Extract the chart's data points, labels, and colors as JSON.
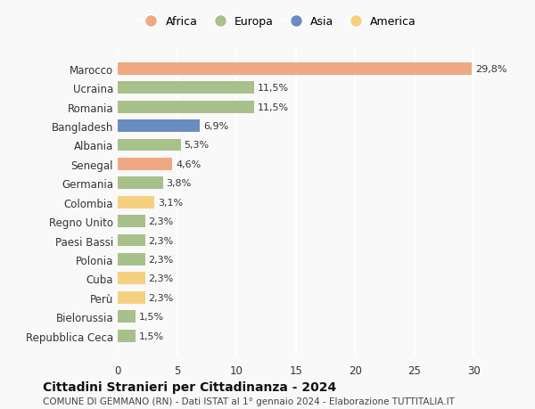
{
  "countries": [
    "Repubblica Ceca",
    "Bielorussia",
    "Perù",
    "Cuba",
    "Polonia",
    "Paesi Bassi",
    "Regno Unito",
    "Colombia",
    "Germania",
    "Senegal",
    "Albania",
    "Bangladesh",
    "Romania",
    "Ucraina",
    "Marocco"
  ],
  "values": [
    1.5,
    1.5,
    2.3,
    2.3,
    2.3,
    2.3,
    2.3,
    3.1,
    3.8,
    4.6,
    5.3,
    6.9,
    11.5,
    11.5,
    29.8
  ],
  "labels": [
    "1,5%",
    "1,5%",
    "2,3%",
    "2,3%",
    "2,3%",
    "2,3%",
    "2,3%",
    "3,1%",
    "3,8%",
    "4,6%",
    "5,3%",
    "6,9%",
    "11,5%",
    "11,5%",
    "29,8%"
  ],
  "continents": [
    "Europa",
    "Europa",
    "America",
    "America",
    "Europa",
    "Europa",
    "Europa",
    "America",
    "Europa",
    "Africa",
    "Europa",
    "Asia",
    "Europa",
    "Europa",
    "Africa"
  ],
  "colors": {
    "Africa": "#F0A882",
    "Europa": "#A8C08A",
    "Asia": "#6B8CBE",
    "America": "#F5D080"
  },
  "legend_order": [
    "Africa",
    "Europa",
    "Asia",
    "America"
  ],
  "title": "Cittadini Stranieri per Cittadinanza - 2024",
  "subtitle": "COMUNE DI GEMMANO (RN) - Dati ISTAT al 1° gennaio 2024 - Elaborazione TUTTITALIA.IT",
  "xlim": [
    0,
    32
  ],
  "xticks": [
    0,
    5,
    10,
    15,
    20,
    25,
    30
  ],
  "bg_color": "#f9f9f9",
  "grid_color": "#ffffff",
  "bar_height": 0.65
}
